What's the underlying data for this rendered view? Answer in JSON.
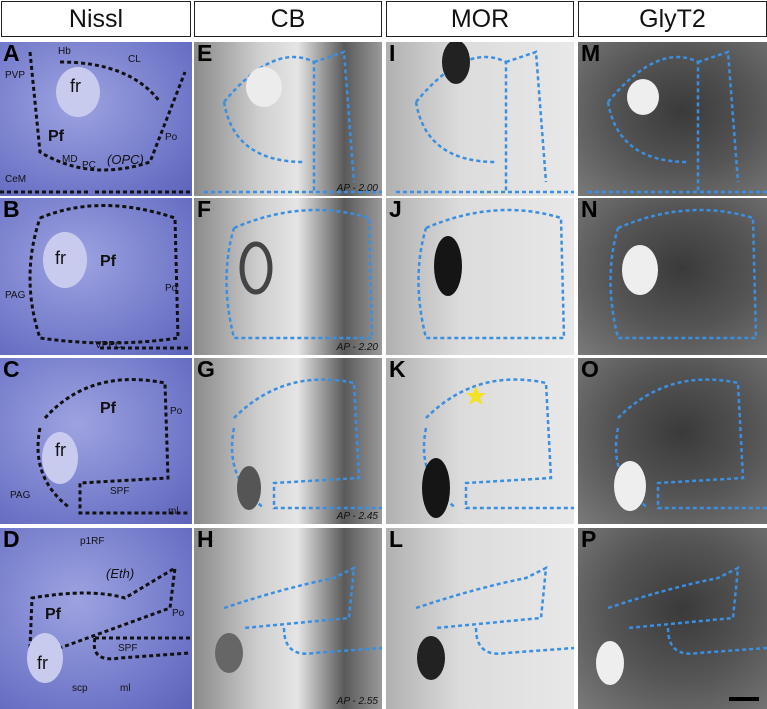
{
  "headers": [
    "Nissl",
    "CB",
    "MOR",
    "GlyT2"
  ],
  "panels": {
    "A": {
      "letter": "A",
      "labels": [
        "Hb",
        "CL",
        "PVP",
        "fr",
        "Pf",
        "Po",
        "MD",
        "PC",
        "(OPC)",
        "CeM"
      ]
    },
    "B": {
      "letter": "B",
      "labels": [
        "fr",
        "Pf",
        "Po",
        "PAG",
        "VPPC"
      ]
    },
    "C": {
      "letter": "C",
      "labels": [
        "Pf",
        "Po",
        "fr",
        "SPF",
        "PAG",
        "ml"
      ]
    },
    "D": {
      "letter": "D",
      "labels": [
        "p1RF",
        "(Eth)",
        "Pf",
        "Po",
        "SPF",
        "fr",
        "scp",
        "ml"
      ]
    },
    "E": {
      "letter": "E",
      "ap": "AP - 2.00"
    },
    "F": {
      "letter": "F",
      "ap": "AP - 2.20"
    },
    "G": {
      "letter": "G",
      "ap": "AP - 2.45"
    },
    "H": {
      "letter": "H",
      "ap": "AP - 2.55"
    },
    "I": {
      "letter": "I"
    },
    "J": {
      "letter": "J"
    },
    "K": {
      "letter": "K"
    },
    "L": {
      "letter": "L"
    },
    "M": {
      "letter": "M"
    },
    "N": {
      "letter": "N"
    },
    "O": {
      "letter": "O"
    },
    "P": {
      "letter": "P"
    }
  },
  "colors": {
    "outline_nissl": "#111111",
    "outline_other": "#3b8fe0",
    "star": "#f5e12a"
  }
}
